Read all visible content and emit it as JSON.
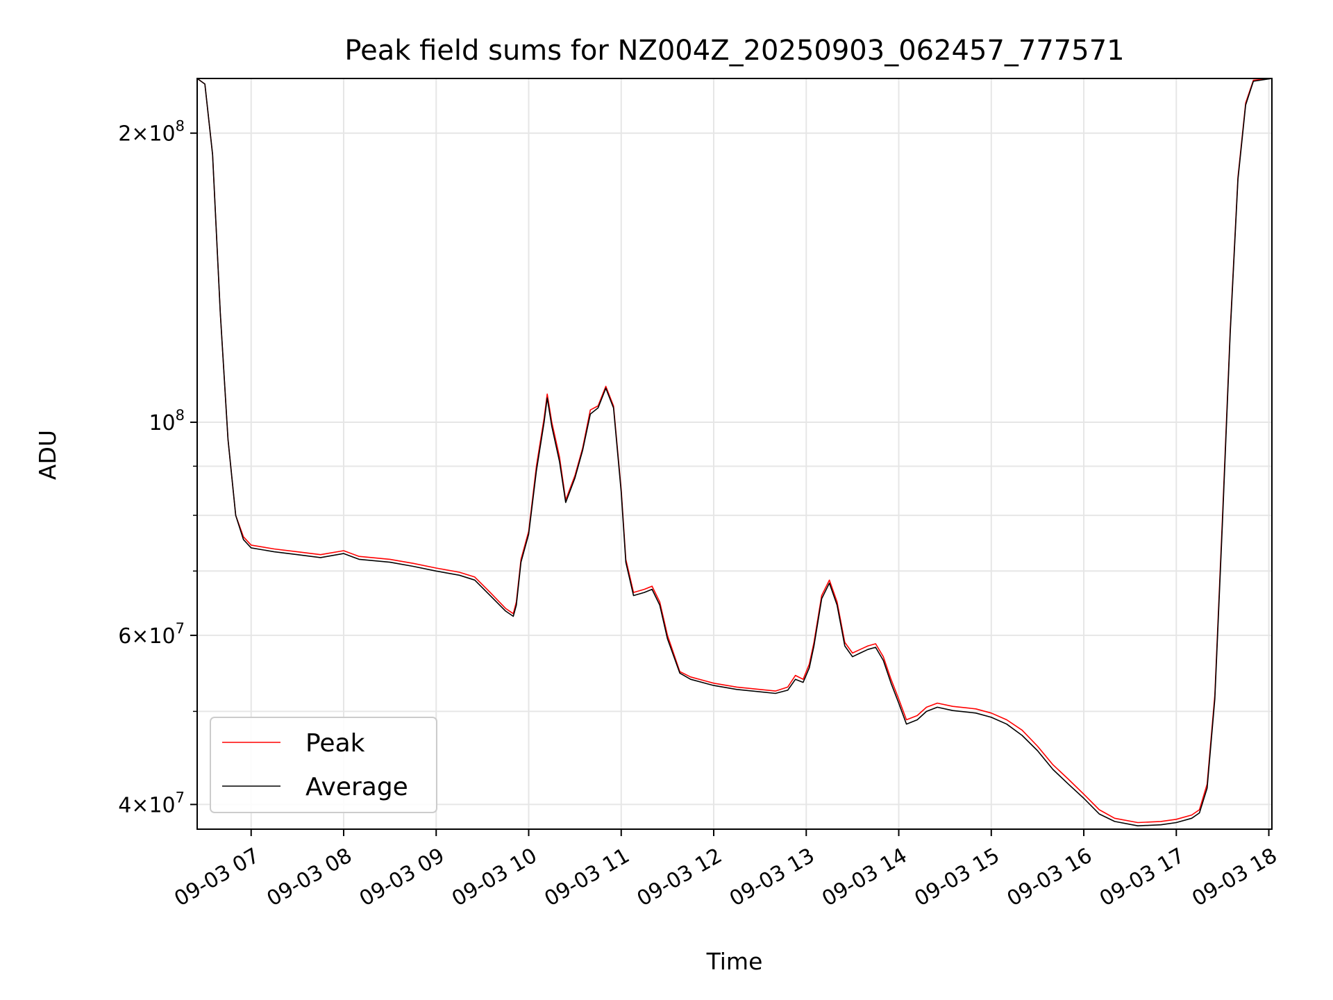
{
  "chart_data": {
    "type": "line",
    "title": "Peak field sums for NZ004Z_20250903_062457_777571",
    "xlabel": "Time",
    "ylabel": "ADU",
    "yscale": "log",
    "ylim": [
      37700000,
      228000000
    ],
    "xlim": [
      "2025-09-03T06:25",
      "2025-09-03T18:02"
    ],
    "grid": true,
    "legend_placement": "lower-left",
    "x_ticks": [
      {
        "t": "2025-09-03T07:00",
        "label": "09-03 07"
      },
      {
        "t": "2025-09-03T08:00",
        "label": "09-03 08"
      },
      {
        "t": "2025-09-03T09:00",
        "label": "09-03 09"
      },
      {
        "t": "2025-09-03T10:00",
        "label": "09-03 10"
      },
      {
        "t": "2025-09-03T11:00",
        "label": "09-03 11"
      },
      {
        "t": "2025-09-03T12:00",
        "label": "09-03 12"
      },
      {
        "t": "2025-09-03T13:00",
        "label": "09-03 13"
      },
      {
        "t": "2025-09-03T14:00",
        "label": "09-03 14"
      },
      {
        "t": "2025-09-03T15:00",
        "label": "09-03 15"
      },
      {
        "t": "2025-09-03T16:00",
        "label": "09-03 16"
      },
      {
        "t": "2025-09-03T17:00",
        "label": "09-03 17"
      },
      {
        "t": "2025-09-03T18:00",
        "label": "09-03 18"
      }
    ],
    "y_major_ticks": [
      {
        "value": 40000000,
        "base": "4",
        "exp": "7"
      },
      {
        "value": 60000000,
        "base": "6",
        "exp": "7"
      },
      {
        "value": 100000000,
        "base": "",
        "exp": "8"
      },
      {
        "value": 200000000,
        "base": "2",
        "exp": "8"
      }
    ],
    "y_minor_ticks": [
      50000000,
      70000000,
      80000000,
      90000000
    ],
    "series": [
      {
        "name": "Peak",
        "color": "#ff0000",
        "points": [
          [
            "2025-09-03T06:25",
            228000000
          ],
          [
            "2025-09-03T06:30",
            225000000
          ],
          [
            "2025-09-03T06:35",
            190000000
          ],
          [
            "2025-09-03T06:40",
            130000000
          ],
          [
            "2025-09-03T06:45",
            96000000
          ],
          [
            "2025-09-03T06:50",
            80000000
          ],
          [
            "2025-09-03T06:55",
            76000000
          ],
          [
            "2025-09-03T07:00",
            74500000
          ],
          [
            "2025-09-03T07:15",
            73800000
          ],
          [
            "2025-09-03T07:30",
            73300000
          ],
          [
            "2025-09-03T07:45",
            72800000
          ],
          [
            "2025-09-03T08:00",
            73500000
          ],
          [
            "2025-09-03T08:10",
            72500000
          ],
          [
            "2025-09-03T08:30",
            72000000
          ],
          [
            "2025-09-03T08:45",
            71300000
          ],
          [
            "2025-09-03T09:00",
            70500000
          ],
          [
            "2025-09-03T09:15",
            69800000
          ],
          [
            "2025-09-03T09:25",
            69000000
          ],
          [
            "2025-09-03T09:35",
            66500000
          ],
          [
            "2025-09-03T09:45",
            64000000
          ],
          [
            "2025-09-03T09:50",
            63200000
          ],
          [
            "2025-09-03T09:52",
            65000000
          ],
          [
            "2025-09-03T09:55",
            72000000
          ],
          [
            "2025-09-03T10:00",
            77000000
          ],
          [
            "2025-09-03T10:05",
            90000000
          ],
          [
            "2025-09-03T10:10",
            101000000
          ],
          [
            "2025-09-03T10:12",
            107000000
          ],
          [
            "2025-09-03T10:15",
            100000000
          ],
          [
            "2025-09-03T10:20",
            92000000
          ],
          [
            "2025-09-03T10:24",
            83000000
          ],
          [
            "2025-09-03T10:30",
            88000000
          ],
          [
            "2025-09-03T10:35",
            94000000
          ],
          [
            "2025-09-03T10:40",
            103000000
          ],
          [
            "2025-09-03T10:45",
            104000000
          ],
          [
            "2025-09-03T10:50",
            109000000
          ],
          [
            "2025-09-03T10:55",
            104000000
          ],
          [
            "2025-09-03T11:00",
            85000000
          ],
          [
            "2025-09-03T11:03",
            72000000
          ],
          [
            "2025-09-03T11:08",
            66500000
          ],
          [
            "2025-09-03T11:15",
            67000000
          ],
          [
            "2025-09-03T11:20",
            67500000
          ],
          [
            "2025-09-03T11:25",
            65000000
          ],
          [
            "2025-09-03T11:30",
            60000000
          ],
          [
            "2025-09-03T11:38",
            55000000
          ],
          [
            "2025-09-03T11:45",
            54300000
          ],
          [
            "2025-09-03T12:00",
            53500000
          ],
          [
            "2025-09-03T12:15",
            53000000
          ],
          [
            "2025-09-03T12:30",
            52700000
          ],
          [
            "2025-09-03T12:40",
            52500000
          ],
          [
            "2025-09-03T12:48",
            53000000
          ],
          [
            "2025-09-03T12:53",
            54500000
          ],
          [
            "2025-09-03T12:58",
            54000000
          ],
          [
            "2025-09-03T13:02",
            56000000
          ],
          [
            "2025-09-03T13:05",
            59000000
          ],
          [
            "2025-09-03T13:10",
            66000000
          ],
          [
            "2025-09-03T13:15",
            68500000
          ],
          [
            "2025-09-03T13:20",
            65000000
          ],
          [
            "2025-09-03T13:25",
            59000000
          ],
          [
            "2025-09-03T13:30",
            57500000
          ],
          [
            "2025-09-03T13:35",
            58000000
          ],
          [
            "2025-09-03T13:40",
            58500000
          ],
          [
            "2025-09-03T13:45",
            58800000
          ],
          [
            "2025-09-03T13:50",
            57000000
          ],
          [
            "2025-09-03T13:55",
            54000000
          ],
          [
            "2025-09-03T14:00",
            51500000
          ],
          [
            "2025-09-03T14:05",
            49000000
          ],
          [
            "2025-09-03T14:12",
            49500000
          ],
          [
            "2025-09-03T14:18",
            50500000
          ],
          [
            "2025-09-03T14:25",
            51000000
          ],
          [
            "2025-09-03T14:35",
            50600000
          ],
          [
            "2025-09-03T14:50",
            50300000
          ],
          [
            "2025-09-03T15:00",
            49800000
          ],
          [
            "2025-09-03T15:10",
            49000000
          ],
          [
            "2025-09-03T15:20",
            47800000
          ],
          [
            "2025-09-03T15:30",
            46000000
          ],
          [
            "2025-09-03T15:40",
            44000000
          ],
          [
            "2025-09-03T15:50",
            42500000
          ],
          [
            "2025-09-03T16:00",
            41000000
          ],
          [
            "2025-09-03T16:10",
            39500000
          ],
          [
            "2025-09-03T16:20",
            38700000
          ],
          [
            "2025-09-03T16:35",
            38300000
          ],
          [
            "2025-09-03T16:50",
            38400000
          ],
          [
            "2025-09-03T17:00",
            38600000
          ],
          [
            "2025-09-03T17:10",
            39000000
          ],
          [
            "2025-09-03T17:15",
            39500000
          ],
          [
            "2025-09-03T17:20",
            42000000
          ],
          [
            "2025-09-03T17:25",
            52000000
          ],
          [
            "2025-09-03T17:30",
            80000000
          ],
          [
            "2025-09-03T17:35",
            125000000
          ],
          [
            "2025-09-03T17:40",
            180000000
          ],
          [
            "2025-09-03T17:45",
            215000000
          ],
          [
            "2025-09-03T17:50",
            227000000
          ],
          [
            "2025-09-03T18:02",
            228000000
          ]
        ]
      },
      {
        "name": "Average",
        "color": "#000000",
        "points": [
          [
            "2025-09-03T06:25",
            228000000
          ],
          [
            "2025-09-03T06:30",
            225000000
          ],
          [
            "2025-09-03T06:35",
            190000000
          ],
          [
            "2025-09-03T06:40",
            130000000
          ],
          [
            "2025-09-03T06:45",
            96000000
          ],
          [
            "2025-09-03T06:50",
            80000000
          ],
          [
            "2025-09-03T06:55",
            75500000
          ],
          [
            "2025-09-03T07:00",
            74000000
          ],
          [
            "2025-09-03T07:15",
            73300000
          ],
          [
            "2025-09-03T07:30",
            72800000
          ],
          [
            "2025-09-03T07:45",
            72300000
          ],
          [
            "2025-09-03T08:00",
            73000000
          ],
          [
            "2025-09-03T08:10",
            72000000
          ],
          [
            "2025-09-03T08:30",
            71500000
          ],
          [
            "2025-09-03T08:45",
            70800000
          ],
          [
            "2025-09-03T09:00",
            70000000
          ],
          [
            "2025-09-03T09:15",
            69300000
          ],
          [
            "2025-09-03T09:25",
            68500000
          ],
          [
            "2025-09-03T09:35",
            66000000
          ],
          [
            "2025-09-03T09:45",
            63600000
          ],
          [
            "2025-09-03T09:50",
            62800000
          ],
          [
            "2025-09-03T09:52",
            64500000
          ],
          [
            "2025-09-03T09:55",
            71500000
          ],
          [
            "2025-09-03T10:00",
            76500000
          ],
          [
            "2025-09-03T10:05",
            89000000
          ],
          [
            "2025-09-03T10:10",
            100000000
          ],
          [
            "2025-09-03T10:12",
            106000000
          ],
          [
            "2025-09-03T10:15",
            99000000
          ],
          [
            "2025-09-03T10:20",
            91000000
          ],
          [
            "2025-09-03T10:24",
            82500000
          ],
          [
            "2025-09-03T10:30",
            87500000
          ],
          [
            "2025-09-03T10:35",
            93500000
          ],
          [
            "2025-09-03T10:40",
            102000000
          ],
          [
            "2025-09-03T10:45",
            103500000
          ],
          [
            "2025-09-03T10:50",
            108500000
          ],
          [
            "2025-09-03T10:55",
            103500000
          ],
          [
            "2025-09-03T11:00",
            84500000
          ],
          [
            "2025-09-03T11:03",
            71500000
          ],
          [
            "2025-09-03T11:08",
            66000000
          ],
          [
            "2025-09-03T11:15",
            66500000
          ],
          [
            "2025-09-03T11:20",
            67000000
          ],
          [
            "2025-09-03T11:25",
            64500000
          ],
          [
            "2025-09-03T11:30",
            59500000
          ],
          [
            "2025-09-03T11:38",
            54800000
          ],
          [
            "2025-09-03T11:45",
            54000000
          ],
          [
            "2025-09-03T12:00",
            53200000
          ],
          [
            "2025-09-03T12:15",
            52700000
          ],
          [
            "2025-09-03T12:30",
            52400000
          ],
          [
            "2025-09-03T12:40",
            52200000
          ],
          [
            "2025-09-03T12:48",
            52600000
          ],
          [
            "2025-09-03T12:53",
            54000000
          ],
          [
            "2025-09-03T12:58",
            53600000
          ],
          [
            "2025-09-03T13:02",
            55500000
          ],
          [
            "2025-09-03T13:05",
            58500000
          ],
          [
            "2025-09-03T13:10",
            65500000
          ],
          [
            "2025-09-03T13:15",
            68000000
          ],
          [
            "2025-09-03T13:20",
            64500000
          ],
          [
            "2025-09-03T13:25",
            58500000
          ],
          [
            "2025-09-03T13:30",
            57000000
          ],
          [
            "2025-09-03T13:35",
            57500000
          ],
          [
            "2025-09-03T13:40",
            58000000
          ],
          [
            "2025-09-03T13:45",
            58300000
          ],
          [
            "2025-09-03T13:50",
            56500000
          ],
          [
            "2025-09-03T13:55",
            53500000
          ],
          [
            "2025-09-03T14:00",
            51000000
          ],
          [
            "2025-09-03T14:05",
            48500000
          ],
          [
            "2025-09-03T14:12",
            49000000
          ],
          [
            "2025-09-03T14:18",
            50000000
          ],
          [
            "2025-09-03T14:25",
            50500000
          ],
          [
            "2025-09-03T14:35",
            50100000
          ],
          [
            "2025-09-03T14:50",
            49800000
          ],
          [
            "2025-09-03T15:00",
            49300000
          ],
          [
            "2025-09-03T15:10",
            48500000
          ],
          [
            "2025-09-03T15:20",
            47200000
          ],
          [
            "2025-09-03T15:30",
            45500000
          ],
          [
            "2025-09-03T15:40",
            43500000
          ],
          [
            "2025-09-03T15:50",
            42000000
          ],
          [
            "2025-09-03T16:00",
            40600000
          ],
          [
            "2025-09-03T16:10",
            39100000
          ],
          [
            "2025-09-03T16:20",
            38400000
          ],
          [
            "2025-09-03T16:35",
            38000000
          ],
          [
            "2025-09-03T16:50",
            38100000
          ],
          [
            "2025-09-03T17:00",
            38300000
          ],
          [
            "2025-09-03T17:10",
            38700000
          ],
          [
            "2025-09-03T17:15",
            39200000
          ],
          [
            "2025-09-03T17:20",
            41600000
          ],
          [
            "2025-09-03T17:25",
            51500000
          ],
          [
            "2025-09-03T17:30",
            79000000
          ],
          [
            "2025-09-03T17:35",
            124000000
          ],
          [
            "2025-09-03T17:40",
            179000000
          ],
          [
            "2025-09-03T17:45",
            214000000
          ],
          [
            "2025-09-03T17:50",
            226500000
          ],
          [
            "2025-09-03T18:02",
            228000000
          ]
        ]
      }
    ]
  }
}
